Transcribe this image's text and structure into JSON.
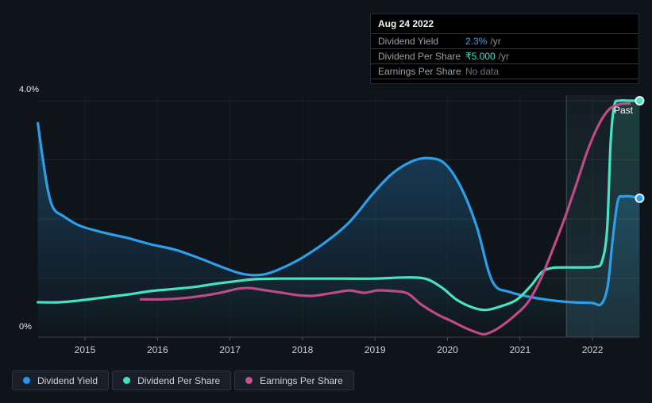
{
  "tooltip": {
    "date": "Aug 24 2022",
    "rows": [
      {
        "label": "Dividend Yield",
        "value": "2.3%",
        "suffix": "/yr",
        "value_color": "#36a3f0"
      },
      {
        "label": "Dividend Per Share",
        "value": "₹5.000",
        "suffix": "/yr",
        "value_color": "#4ae0c4"
      },
      {
        "label": "Earnings Per Share",
        "value": "No data",
        "suffix": "",
        "value_color": "#6b7178"
      }
    ]
  },
  "legend": {
    "items": [
      {
        "label": "Dividend Yield",
        "color": "#2196f3"
      },
      {
        "label": "Dividend Per Share",
        "color": "#40e0c5"
      },
      {
        "label": "Earnings Per Share",
        "color": "#c2538e"
      }
    ]
  },
  "chart_data": {
    "type": "line",
    "x_axis": {
      "min": 2014.35,
      "max": 2022.65,
      "ticks": [
        2015,
        2016,
        2017,
        2018,
        2019,
        2020,
        2021,
        2022
      ]
    },
    "y_axis": {
      "min": 0,
      "max": 4,
      "grid_step": 1,
      "unit": "%",
      "label_top": "4.0%",
      "label_bottom": "0%"
    },
    "past_label": "Past",
    "past_boundary_x": 2021.64,
    "colors": {
      "grid": "rgba(255,255,255,0.08)",
      "vgrid": "rgba(255,255,255,0.035)",
      "axis": "#3f4750",
      "tick": "#4a525a",
      "x_tick_text": "#ccd0d4",
      "past_border": "rgba(125,215,235,0.30)"
    },
    "series": [
      {
        "name": "Dividend Yield",
        "color": "#2d9ee8",
        "area": true,
        "end_dot": true,
        "points": [
          [
            2014.35,
            3.62
          ],
          [
            2014.41,
            3.09
          ],
          [
            2014.49,
            2.48
          ],
          [
            2014.57,
            2.17
          ],
          [
            2014.7,
            2.05
          ],
          [
            2014.92,
            1.89
          ],
          [
            2015.25,
            1.77
          ],
          [
            2015.58,
            1.68
          ],
          [
            2015.91,
            1.57
          ],
          [
            2016.24,
            1.48
          ],
          [
            2016.57,
            1.34
          ],
          [
            2016.84,
            1.21
          ],
          [
            2017.11,
            1.09
          ],
          [
            2017.31,
            1.05
          ],
          [
            2017.5,
            1.07
          ],
          [
            2017.72,
            1.17
          ],
          [
            2017.99,
            1.34
          ],
          [
            2018.32,
            1.61
          ],
          [
            2018.65,
            1.95
          ],
          [
            2018.98,
            2.44
          ],
          [
            2019.25,
            2.78
          ],
          [
            2019.52,
            2.98
          ],
          [
            2019.74,
            3.03
          ],
          [
            2019.96,
            2.94
          ],
          [
            2020.18,
            2.55
          ],
          [
            2020.4,
            1.88
          ],
          [
            2020.56,
            1.14
          ],
          [
            2020.67,
            0.85
          ],
          [
            2020.84,
            0.77
          ],
          [
            2021.06,
            0.7
          ],
          [
            2021.39,
            0.63
          ],
          [
            2021.71,
            0.59
          ],
          [
            2021.99,
            0.58
          ],
          [
            2022.12,
            0.56
          ],
          [
            2022.21,
            0.87
          ],
          [
            2022.28,
            1.68
          ],
          [
            2022.35,
            2.31
          ],
          [
            2022.43,
            2.38
          ],
          [
            2022.54,
            2.38
          ],
          [
            2022.65,
            2.35
          ]
        ]
      },
      {
        "name": "Dividend Per Share",
        "color": "#4ae0c4",
        "area": true,
        "end_dot": true,
        "points": [
          [
            2014.35,
            0.59
          ],
          [
            2014.65,
            0.59
          ],
          [
            2014.92,
            0.62
          ],
          [
            2015.25,
            0.67
          ],
          [
            2015.58,
            0.72
          ],
          [
            2015.91,
            0.78
          ],
          [
            2016.18,
            0.81
          ],
          [
            2016.51,
            0.85
          ],
          [
            2016.84,
            0.91
          ],
          [
            2017.11,
            0.95
          ],
          [
            2017.33,
            0.98
          ],
          [
            2017.66,
            0.99
          ],
          [
            2018.1,
            0.99
          ],
          [
            2018.54,
            0.99
          ],
          [
            2018.98,
            0.99
          ],
          [
            2019.41,
            1.01
          ],
          [
            2019.69,
            0.99
          ],
          [
            2019.91,
            0.85
          ],
          [
            2020.13,
            0.63
          ],
          [
            2020.35,
            0.5
          ],
          [
            2020.53,
            0.46
          ],
          [
            2020.73,
            0.52
          ],
          [
            2020.95,
            0.63
          ],
          [
            2021.15,
            0.87
          ],
          [
            2021.3,
            1.1
          ],
          [
            2021.44,
            1.17
          ],
          [
            2021.61,
            1.18
          ],
          [
            2021.82,
            1.18
          ],
          [
            2022.04,
            1.19
          ],
          [
            2022.13,
            1.28
          ],
          [
            2022.2,
            1.81
          ],
          [
            2022.25,
            3.29
          ],
          [
            2022.3,
            3.92
          ],
          [
            2022.37,
            4.0
          ],
          [
            2022.5,
            4.0
          ],
          [
            2022.65,
            4.0
          ]
        ]
      },
      {
        "name": "Earnings Per Share",
        "color": "#bf4a86",
        "area": false,
        "end_dot": false,
        "points": [
          [
            2015.77,
            0.64
          ],
          [
            2016.07,
            0.64
          ],
          [
            2016.35,
            0.66
          ],
          [
            2016.62,
            0.7
          ],
          [
            2016.9,
            0.76
          ],
          [
            2017.11,
            0.82
          ],
          [
            2017.28,
            0.83
          ],
          [
            2017.5,
            0.79
          ],
          [
            2017.72,
            0.75
          ],
          [
            2017.94,
            0.71
          ],
          [
            2018.15,
            0.7
          ],
          [
            2018.43,
            0.75
          ],
          [
            2018.65,
            0.79
          ],
          [
            2018.85,
            0.75
          ],
          [
            2019.03,
            0.79
          ],
          [
            2019.25,
            0.78
          ],
          [
            2019.45,
            0.74
          ],
          [
            2019.63,
            0.56
          ],
          [
            2019.85,
            0.39
          ],
          [
            2020.04,
            0.28
          ],
          [
            2020.24,
            0.16
          ],
          [
            2020.4,
            0.08
          ],
          [
            2020.51,
            0.05
          ],
          [
            2020.64,
            0.11
          ],
          [
            2020.78,
            0.22
          ],
          [
            2020.95,
            0.39
          ],
          [
            2021.11,
            0.59
          ],
          [
            2021.28,
            0.97
          ],
          [
            2021.44,
            1.45
          ],
          [
            2021.61,
            1.99
          ],
          [
            2021.77,
            2.56
          ],
          [
            2021.93,
            3.15
          ],
          [
            2022.08,
            3.58
          ],
          [
            2022.21,
            3.83
          ],
          [
            2022.32,
            3.92
          ],
          [
            2022.43,
            3.95
          ],
          [
            2022.51,
            3.95
          ]
        ]
      }
    ]
  }
}
